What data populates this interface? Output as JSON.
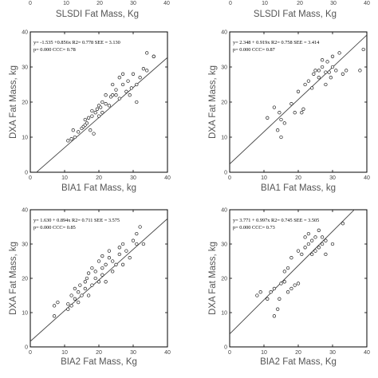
{
  "top_strip": {
    "ticks": [
      "0",
      "10",
      "20",
      "30",
      "40"
    ],
    "labels": [
      "SLSDI Fat Mass, Kg",
      "SLSDI Fat Mass, Kg"
    ]
  },
  "chart_data": [
    {
      "type": "scatter",
      "xlabel": "BIA1 Fat Mass,  kg",
      "ylabel": "DXA Fat Mass, kg",
      "xlim": [
        0,
        40
      ],
      "ylim": [
        0,
        40
      ],
      "xticks": [
        0,
        10,
        20,
        30,
        40
      ],
      "yticks": [
        0,
        10,
        20,
        30,
        40
      ],
      "annotation": [
        "y= -1.535 +0.856x  R2= 0.778  SEE = 3.130",
        "p= 0.000  CCC= 0.78"
      ],
      "fit": {
        "intercept": -1.535,
        "slope": 0.856
      },
      "grid": false,
      "points": [
        [
          11,
          9
        ],
        [
          12,
          9.5
        ],
        [
          12.5,
          12
        ],
        [
          13,
          10
        ],
        [
          14,
          11.5
        ],
        [
          15,
          12.5
        ],
        [
          15.5,
          13
        ],
        [
          16,
          13.5
        ],
        [
          16,
          15
        ],
        [
          16.5,
          14
        ],
        [
          17,
          15.5
        ],
        [
          17.5,
          12
        ],
        [
          18,
          16
        ],
        [
          18,
          17.5
        ],
        [
          18.5,
          11
        ],
        [
          19,
          17
        ],
        [
          19.5,
          18
        ],
        [
          20,
          16
        ],
        [
          20,
          19
        ],
        [
          20.5,
          18.5
        ],
        [
          21,
          17
        ],
        [
          21,
          20
        ],
        [
          22,
          19.5
        ],
        [
          22,
          22
        ],
        [
          23,
          19
        ],
        [
          23.5,
          21.5
        ],
        [
          24,
          22
        ],
        [
          24,
          25
        ],
        [
          25,
          22
        ],
        [
          25,
          23.5
        ],
        [
          26,
          27
        ],
        [
          26,
          21
        ],
        [
          27,
          25
        ],
        [
          27,
          28
        ],
        [
          28,
          23
        ],
        [
          28.5,
          26
        ],
        [
          29,
          22
        ],
        [
          29.5,
          24
        ],
        [
          30,
          28
        ],
        [
          31,
          20
        ],
        [
          31,
          25
        ],
        [
          32,
          27
        ],
        [
          33,
          29.5
        ],
        [
          34,
          34
        ],
        [
          34,
          29
        ],
        [
          36,
          33
        ],
        [
          36,
          33
        ]
      ]
    },
    {
      "type": "scatter",
      "xlabel": "BIA1 Fat Mass,  kg",
      "ylabel": "DXA Fat Mass, kg",
      "xlim": [
        0,
        40
      ],
      "ylim": [
        0,
        40
      ],
      "xticks": [
        0,
        10,
        20,
        30,
        40
      ],
      "yticks": [
        0,
        10,
        20,
        30,
        40
      ],
      "annotation": [
        "y= 2.348 + 0.919x  R2= 0.758  SEE = 3.414",
        "p= 0.000  CCC= 0.87"
      ],
      "fit": {
        "intercept": 2.348,
        "slope": 0.919
      },
      "grid": false,
      "points": [
        [
          11,
          15.5
        ],
        [
          13,
          18.5
        ],
        [
          14,
          12
        ],
        [
          14.5,
          17
        ],
        [
          15,
          15
        ],
        [
          15,
          10
        ],
        [
          16,
          14
        ],
        [
          18,
          19.5
        ],
        [
          19,
          17
        ],
        [
          20,
          23
        ],
        [
          21,
          17
        ],
        [
          21.5,
          18
        ],
        [
          22,
          25
        ],
        [
          23,
          26
        ],
        [
          24,
          24
        ],
        [
          24.5,
          28
        ],
        [
          25,
          29
        ],
        [
          26,
          27
        ],
        [
          26,
          29
        ],
        [
          27,
          30
        ],
        [
          27,
          32
        ],
        [
          28,
          28.5
        ],
        [
          28,
          25
        ],
        [
          28.5,
          31.5
        ],
        [
          29,
          28.5
        ],
        [
          29.5,
          27
        ],
        [
          30,
          30
        ],
        [
          30,
          33
        ],
        [
          31,
          29
        ],
        [
          32,
          34
        ],
        [
          33,
          28
        ],
        [
          34,
          29
        ],
        [
          38,
          29
        ],
        [
          39,
          35
        ]
      ]
    },
    {
      "type": "scatter",
      "xlabel": "BIA2 Fat Mass,  Kg",
      "ylabel": "DXA Fat Mass, kg",
      "xlim": [
        0,
        40
      ],
      "ylim": [
        0,
        40
      ],
      "xticks": [
        0,
        10,
        20,
        30,
        40
      ],
      "yticks": [
        0,
        10,
        20,
        30,
        40
      ],
      "annotation": [
        "y= 1.630 + 0.894x  R2= 0.711  SEE = 3.575",
        "p= 0.000  CCC= 0.85"
      ],
      "fit": {
        "intercept": 1.63,
        "slope": 0.894
      },
      "grid": false,
      "points": [
        [
          7,
          9
        ],
        [
          7,
          12
        ],
        [
          8,
          13
        ],
        [
          11,
          11
        ],
        [
          11,
          12.5
        ],
        [
          12,
          12
        ],
        [
          12,
          15
        ],
        [
          13,
          14
        ],
        [
          13,
          17
        ],
        [
          14,
          13
        ],
        [
          14,
          16
        ],
        [
          14.5,
          18
        ],
        [
          15,
          15
        ],
        [
          16,
          17
        ],
        [
          16,
          19
        ],
        [
          16.5,
          20
        ],
        [
          17,
          15
        ],
        [
          17,
          21.5
        ],
        [
          18,
          18
        ],
        [
          18,
          23
        ],
        [
          19,
          20
        ],
        [
          19,
          22
        ],
        [
          20,
          19
        ],
        [
          20,
          25
        ],
        [
          21,
          21
        ],
        [
          21,
          23
        ],
        [
          21,
          26.5
        ],
        [
          22,
          19
        ],
        [
          22,
          24
        ],
        [
          23,
          26
        ],
        [
          23,
          28
        ],
        [
          24,
          22
        ],
        [
          24,
          25
        ],
        [
          25,
          24
        ],
        [
          26,
          27
        ],
        [
          26,
          29
        ],
        [
          27,
          24
        ],
        [
          27,
          30
        ],
        [
          28,
          28
        ],
        [
          29,
          26
        ],
        [
          30,
          31
        ],
        [
          31,
          30
        ],
        [
          31,
          33
        ],
        [
          32,
          35
        ],
        [
          33,
          30
        ]
      ]
    },
    {
      "type": "scatter",
      "xlabel": "BIA2 Fat Mass,  Kg",
      "ylabel": "DXA Fat Mass, kg",
      "xlim": [
        0,
        40
      ],
      "ylim": [
        0,
        40
      ],
      "xticks": [
        0,
        10,
        20,
        30,
        40
      ],
      "yticks": [
        0,
        10,
        20,
        30,
        40
      ],
      "annotation": [
        "y= 3.771 + 0.997x  R2= 0.745  SEE = 3.505",
        "p= 0.000  CCC= 0.73"
      ],
      "fit": {
        "intercept": 3.771,
        "slope": 0.997
      },
      "grid": false,
      "points": [
        [
          8,
          15
        ],
        [
          9,
          16
        ],
        [
          11,
          14
        ],
        [
          12,
          16
        ],
        [
          13,
          9
        ],
        [
          13,
          17
        ],
        [
          14,
          11
        ],
        [
          14.5,
          14
        ],
        [
          15,
          18.5
        ],
        [
          16,
          19
        ],
        [
          16,
          22
        ],
        [
          17,
          16
        ],
        [
          17,
          23
        ],
        [
          18,
          17
        ],
        [
          18,
          26
        ],
        [
          19,
          18
        ],
        [
          20,
          18.5
        ],
        [
          20,
          28
        ],
        [
          21,
          27
        ],
        [
          22,
          29
        ],
        [
          22,
          32
        ],
        [
          23,
          30
        ],
        [
          23,
          33
        ],
        [
          24,
          27
        ],
        [
          24,
          31
        ],
        [
          25,
          28
        ],
        [
          25,
          32
        ],
        [
          26,
          29
        ],
        [
          26,
          34
        ],
        [
          27,
          30
        ],
        [
          27,
          32
        ],
        [
          28,
          31
        ],
        [
          28,
          27
        ],
        [
          30,
          30
        ],
        [
          33,
          36
        ]
      ]
    }
  ]
}
